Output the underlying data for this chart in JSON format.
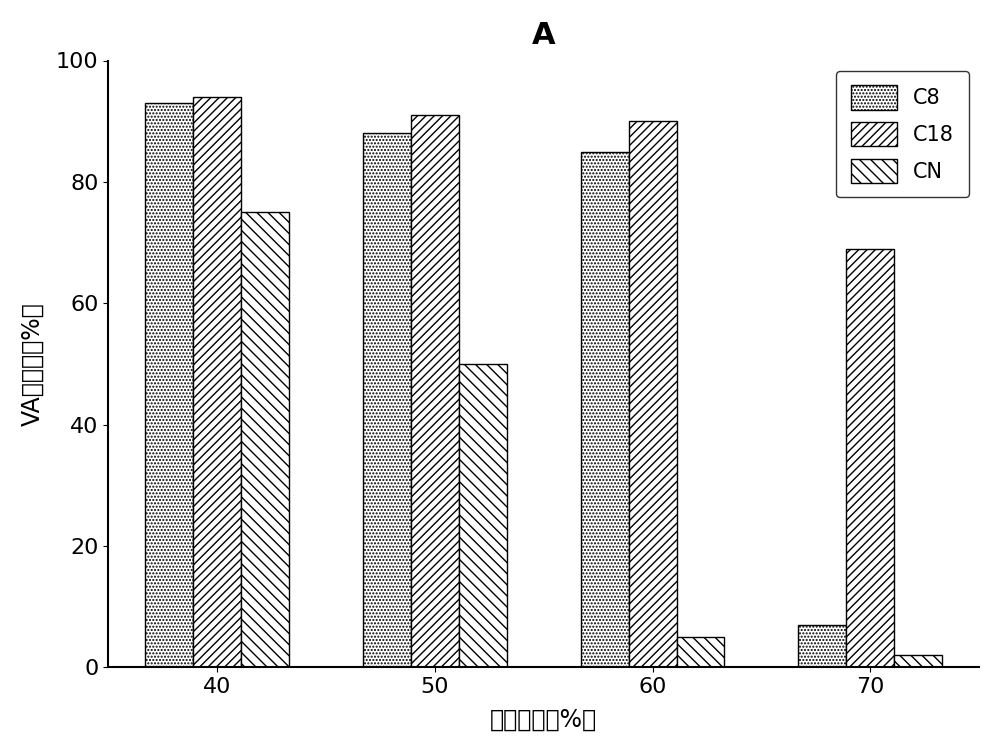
{
  "title": "A",
  "xlabel": "甲醇含量（%）",
  "ylabel": "VA回收率（%）",
  "categories": [
    "40",
    "50",
    "60",
    "70"
  ],
  "series": {
    "C8": [
      93,
      88,
      85,
      7
    ],
    "C18": [
      94,
      91,
      90,
      69
    ],
    "CN": [
      75,
      50,
      5,
      2
    ]
  },
  "ylim": [
    0,
    100
  ],
  "yticks": [
    0,
    20,
    40,
    60,
    80,
    100
  ],
  "bar_width": 0.22,
  "background_color": "#ffffff",
  "bar_edge_color": "#000000",
  "title_fontsize": 22,
  "axis_label_fontsize": 17,
  "tick_fontsize": 16,
  "legend_fontsize": 15
}
